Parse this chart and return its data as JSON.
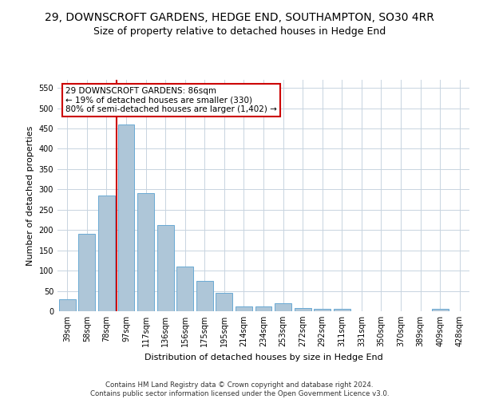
{
  "title": "29, DOWNSCROFT GARDENS, HEDGE END, SOUTHAMPTON, SO30 4RR",
  "subtitle": "Size of property relative to detached houses in Hedge End",
  "xlabel": "Distribution of detached houses by size in Hedge End",
  "ylabel": "Number of detached properties",
  "categories": [
    "39sqm",
    "58sqm",
    "78sqm",
    "97sqm",
    "117sqm",
    "136sqm",
    "156sqm",
    "175sqm",
    "195sqm",
    "214sqm",
    "234sqm",
    "253sqm",
    "272sqm",
    "292sqm",
    "311sqm",
    "331sqm",
    "350sqm",
    "370sqm",
    "389sqm",
    "409sqm",
    "428sqm"
  ],
  "values": [
    30,
    190,
    285,
    460,
    290,
    213,
    110,
    74,
    46,
    12,
    12,
    20,
    8,
    6,
    5,
    0,
    0,
    0,
    0,
    5,
    0
  ],
  "bar_color": "#aec6d8",
  "bar_edge_color": "#6aaad4",
  "vline_color": "#cc0000",
  "annotation_text": "29 DOWNSCROFT GARDENS: 86sqm\n← 19% of detached houses are smaller (330)\n80% of semi-detached houses are larger (1,402) →",
  "annotation_box_color": "white",
  "annotation_box_edge_color": "#cc0000",
  "ylim": [
    0,
    570
  ],
  "yticks": [
    0,
    50,
    100,
    150,
    200,
    250,
    300,
    350,
    400,
    450,
    500,
    550
  ],
  "footer_line1": "Contains HM Land Registry data © Crown copyright and database right 2024.",
  "footer_line2": "Contains public sector information licensed under the Open Government Licence v3.0.",
  "background_color": "#ffffff",
  "grid_color": "#c8d4e0",
  "title_fontsize": 10,
  "subtitle_fontsize": 9,
  "axis_label_fontsize": 8,
  "tick_fontsize": 7,
  "bar_width": 0.85
}
